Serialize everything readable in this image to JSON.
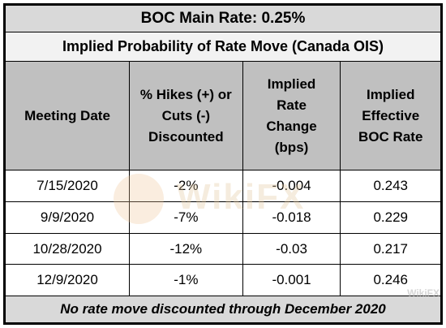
{
  "chart_data": {
    "type": "table",
    "title": "BOC Main Rate: 0.25%",
    "subtitle": "Implied Probability of Rate Move (Canada OIS)",
    "columns": [
      "Meeting Date",
      "% Hikes (+) or Cuts (-) Discounted",
      "Implied Rate Change (bps)",
      "Implied Effective BOC Rate"
    ],
    "rows": [
      [
        "7/15/2020",
        "-2%",
        "-0.004",
        "0.243"
      ],
      [
        "9/9/2020",
        "-7%",
        "-0.018",
        "0.229"
      ],
      [
        "10/28/2020",
        "-12%",
        "-0.03",
        "0.217"
      ],
      [
        "12/9/2020",
        "-1%",
        "-0.001",
        "0.246"
      ]
    ],
    "footer": "No rate move discounted through December 2020"
  },
  "watermark": {
    "center_text": "WikiFX",
    "corner_text": "WikiFX"
  }
}
